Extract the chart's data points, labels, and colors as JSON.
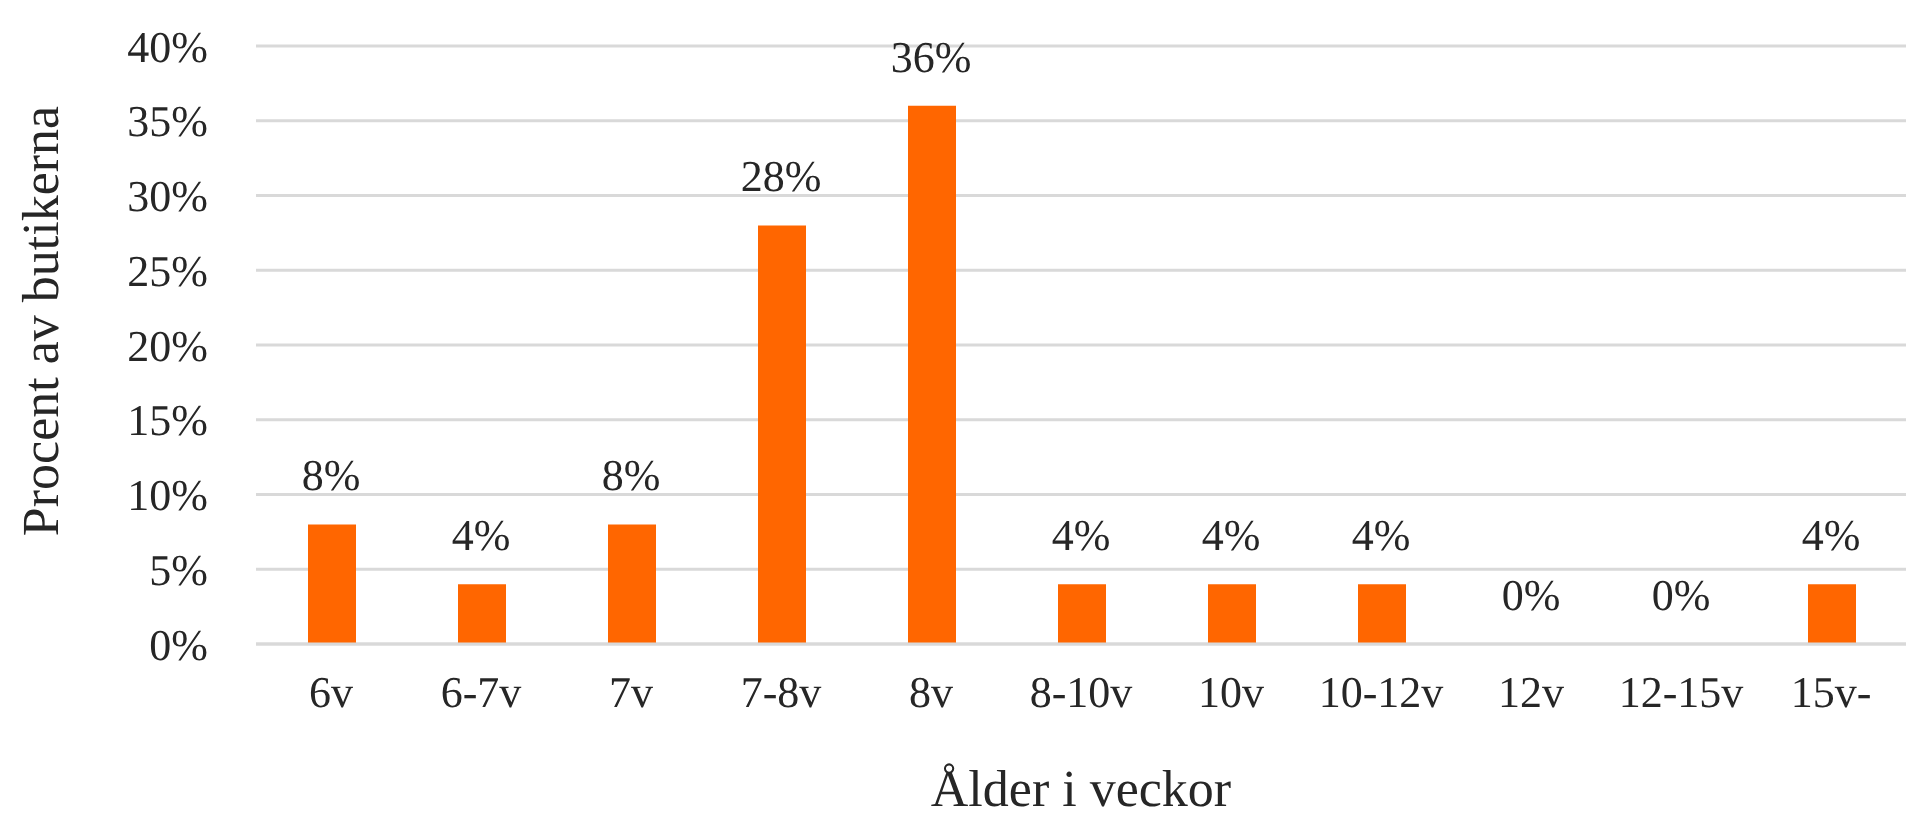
{
  "chart_data": {
    "type": "bar",
    "xlabel": "Ålder i veckor",
    "ylabel": "Procent av butikerna",
    "categories": [
      "6v",
      "6-7v",
      "7v",
      "7-8v",
      "8v",
      "8-10v",
      "10v",
      "10-12v",
      "12v",
      "12-15v",
      "15v-"
    ],
    "values": [
      8,
      4,
      8,
      28,
      36,
      4,
      4,
      4,
      0,
      0,
      4
    ],
    "color": "#ff6600",
    "ylim": [
      0,
      40
    ],
    "yticks": [
      {
        "value": 0,
        "label": "0%"
      },
      {
        "value": 5,
        "label": "5%"
      },
      {
        "value": 10,
        "label": "10%"
      },
      {
        "value": 15,
        "label": "15%"
      },
      {
        "value": 20,
        "label": "20%"
      },
      {
        "value": 25,
        "label": "25%"
      },
      {
        "value": 30,
        "label": "30%"
      },
      {
        "value": 35,
        "label": "35%"
      },
      {
        "value": 40,
        "label": "40%"
      }
    ],
    "grid": "y",
    "value_labels": [
      "8%",
      "4%",
      "8%",
      "28%",
      "36%",
      "4%",
      "4%",
      "4%",
      "0%",
      "0%",
      "4%"
    ]
  }
}
